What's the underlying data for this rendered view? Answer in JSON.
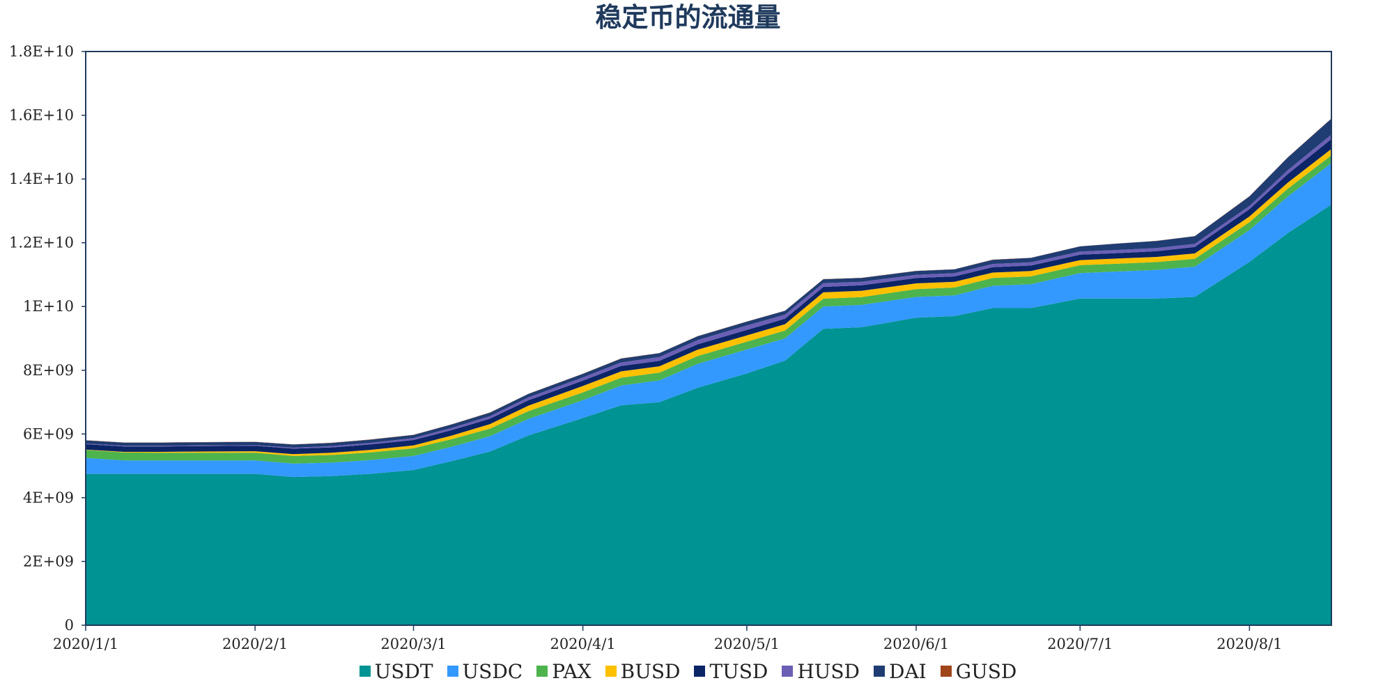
{
  "chart_data": {
    "type": "area",
    "stacked": true,
    "title": "稳定币的流通量",
    "xlabel": "",
    "ylabel": "",
    "ylim": [
      0,
      18000000000
    ],
    "y_ticks": [
      0,
      2000000000,
      4000000000,
      6000000000,
      8000000000,
      10000000000,
      12000000000,
      14000000000,
      16000000000,
      18000000000
    ],
    "y_tick_labels": [
      "0",
      "2E+09",
      "4E+09",
      "6E+09",
      "8E+09",
      "1E+10",
      "1.2E+10",
      "1.4E+10",
      "1.6E+10",
      "1.8E+10"
    ],
    "x_range": [
      "2020/1/1",
      "2020/8/16"
    ],
    "x_ticks": [
      "2020/1/1",
      "2020/2/1",
      "2020/3/1",
      "2020/4/1",
      "2020/5/1",
      "2020/6/1",
      "2020/7/1",
      "2020/8/1"
    ],
    "x": [
      "2020/1/1",
      "2020/1/8",
      "2020/1/15",
      "2020/1/22",
      "2020/2/1",
      "2020/2/8",
      "2020/2/15",
      "2020/2/22",
      "2020/3/1",
      "2020/3/8",
      "2020/3/15",
      "2020/3/22",
      "2020/4/1",
      "2020/4/8",
      "2020/4/15",
      "2020/4/22",
      "2020/5/1",
      "2020/5/8",
      "2020/5/15",
      "2020/5/22",
      "2020/6/1",
      "2020/6/8",
      "2020/6/15",
      "2020/6/22",
      "2020/7/1",
      "2020/7/8",
      "2020/7/15",
      "2020/7/22",
      "2020/8/1",
      "2020/8/8",
      "2020/8/16"
    ],
    "series": [
      {
        "name": "USDT",
        "color": "#009393",
        "values": [
          4750000000,
          4750000000,
          4750000000,
          4750000000,
          4750000000,
          4650000000,
          4680000000,
          4750000000,
          4870000000,
          5150000000,
          5450000000,
          5950000000,
          6500000000,
          6900000000,
          7000000000,
          7450000000,
          7900000000,
          8300000000,
          9300000000,
          9350000000,
          9650000000,
          9700000000,
          9950000000,
          9950000000,
          10250000000,
          10250000000,
          10250000000,
          10300000000,
          11400000000,
          12300000000,
          13200000000
        ]
      },
      {
        "name": "USDC",
        "color": "#3399ff",
        "values": [
          500000000,
          420000000,
          420000000,
          420000000,
          420000000,
          420000000,
          420000000,
          430000000,
          440000000,
          450000000,
          480000000,
          520000000,
          560000000,
          620000000,
          680000000,
          750000000,
          750000000,
          700000000,
          700000000,
          700000000,
          650000000,
          650000000,
          700000000,
          750000000,
          800000000,
          850000000,
          900000000,
          950000000,
          1000000000,
          1150000000,
          1300000000
        ]
      },
      {
        "name": "PAX",
        "color": "#4db34d",
        "values": [
          250000000,
          250000000,
          240000000,
          240000000,
          240000000,
          240000000,
          240000000,
          240000000,
          240000000,
          240000000,
          240000000,
          245000000,
          245000000,
          245000000,
          245000000,
          245000000,
          245000000,
          245000000,
          245000000,
          245000000,
          245000000,
          245000000,
          245000000,
          245000000,
          245000000,
          245000000,
          245000000,
          245000000,
          245000000,
          245000000,
          245000000
        ]
      },
      {
        "name": "BUSD",
        "color": "#ffc000",
        "values": [
          10000000,
          20000000,
          30000000,
          40000000,
          50000000,
          60000000,
          70000000,
          80000000,
          90000000,
          110000000,
          140000000,
          170000000,
          200000000,
          200000000,
          200000000,
          200000000,
          200000000,
          200000000,
          200000000,
          200000000,
          180000000,
          180000000,
          170000000,
          170000000,
          160000000,
          160000000,
          160000000,
          170000000,
          180000000,
          190000000,
          200000000
        ]
      },
      {
        "name": "TUSD",
        "color": "#0b2566",
        "values": [
          170000000,
          170000000,
          170000000,
          170000000,
          170000000,
          170000000,
          170000000,
          170000000,
          170000000,
          170000000,
          170000000,
          170000000,
          170000000,
          170000000,
          170000000,
          170000000,
          170000000,
          170000000,
          170000000,
          170000000,
          170000000,
          170000000,
          170000000,
          170000000,
          170000000,
          170000000,
          180000000,
          200000000,
          230000000,
          270000000,
          310000000
        ]
      },
      {
        "name": "HUSD",
        "color": "#6b5fb5",
        "values": [
          20000000,
          20000000,
          20000000,
          20000000,
          20000000,
          30000000,
          40000000,
          50000000,
          60000000,
          70000000,
          80000000,
          90000000,
          100000000,
          110000000,
          120000000,
          130000000,
          140000000,
          130000000,
          120000000,
          110000000,
          100000000,
          100000000,
          100000000,
          100000000,
          100000000,
          100000000,
          100000000,
          100000000,
          100000000,
          120000000,
          140000000
        ]
      },
      {
        "name": "DAI",
        "color": "#1f3d73",
        "values": [
          100000000,
          100000000,
          100000000,
          100000000,
          100000000,
          100000000,
          100000000,
          100000000,
          100000000,
          110000000,
          110000000,
          110000000,
          110000000,
          120000000,
          120000000,
          120000000,
          120000000,
          120000000,
          120000000,
          120000000,
          120000000,
          120000000,
          130000000,
          140000000,
          160000000,
          200000000,
          220000000,
          240000000,
          300000000,
          400000000,
          500000000
        ]
      },
      {
        "name": "GUSD",
        "color": "#a0441a",
        "values": [
          5000000,
          5000000,
          5000000,
          5000000,
          5000000,
          5000000,
          5000000,
          5000000,
          5000000,
          5000000,
          5000000,
          5000000,
          5000000,
          5000000,
          5000000,
          5000000,
          5000000,
          5000000,
          5000000,
          5000000,
          5000000,
          5000000,
          5000000,
          5000000,
          5000000,
          5000000,
          5000000,
          5000000,
          5000000,
          5000000,
          5000000
        ]
      }
    ],
    "grid": false,
    "legend_position": "bottom"
  }
}
